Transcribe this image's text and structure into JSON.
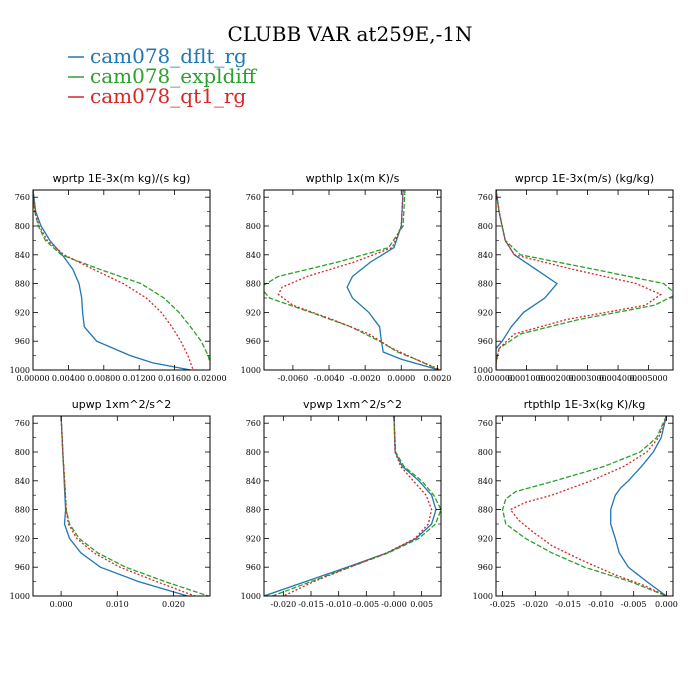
{
  "figure": {
    "title": "CLUBB VAR at259E,-1N",
    "legend": [
      {
        "name": "cam078_dflt_rg",
        "color": "#1f77b4"
      },
      {
        "name": "cam078_expldiff",
        "color": "#2ca02c"
      },
      {
        "name": "cam078_qt1_rg",
        "color": "#d62728"
      }
    ]
  },
  "chart_data": [
    {
      "type": "line",
      "title": "wprtp  1E-3x(m kg)/(s kg)",
      "xlabel": "",
      "ylabel": "",
      "xlim": [
        0,
        0.02
      ],
      "ylim": [
        1000,
        750
      ],
      "x_ticks": [
        "0.00000",
        "0.00400",
        "0.00800",
        "0.01200",
        "0.01600",
        "0.02000"
      ],
      "x_tick_values": [
        0,
        0.004,
        0.008,
        0.012,
        0.016,
        0.02
      ],
      "y_ticks": [
        760,
        800,
        840,
        880,
        920,
        960,
        1000
      ],
      "series": [
        {
          "name": "cam078_dflt_rg",
          "y": [
            750,
            780,
            800,
            820,
            840,
            860,
            880,
            900,
            920,
            940,
            960,
            980,
            990,
            1000
          ],
          "x": [
            0,
            0.0003,
            0.0009,
            0.0019,
            0.0033,
            0.0045,
            0.0052,
            0.0055,
            0.0056,
            0.0058,
            0.0072,
            0.011,
            0.0135,
            0.0178
          ]
        },
        {
          "name": "cam078_expldiff",
          "y": [
            750,
            780,
            800,
            820,
            840,
            860,
            880,
            900,
            920,
            940,
            960,
            980,
            1000
          ],
          "x": [
            0,
            0.0002,
            0.0006,
            0.0014,
            0.0032,
            0.0075,
            0.0122,
            0.0148,
            0.0165,
            0.0178,
            0.019,
            0.0198,
            0.0202
          ]
        },
        {
          "name": "cam078_qt1_rg",
          "y": [
            750,
            780,
            800,
            820,
            840,
            860,
            880,
            900,
            920,
            940,
            960,
            980,
            1000
          ],
          "x": [
            0,
            0.0002,
            0.0007,
            0.0016,
            0.0035,
            0.0068,
            0.0102,
            0.0128,
            0.0145,
            0.0157,
            0.0167,
            0.0175,
            0.0181
          ]
        }
      ]
    },
    {
      "type": "line",
      "title": "wpthlp  1x(m K)/s",
      "xlabel": "",
      "ylabel": "",
      "xlim": [
        -0.0076,
        0.0022
      ],
      "ylim": [
        1000,
        750
      ],
      "x_ticks": [
        "-0.0060",
        "-0.0040",
        "-0.0020",
        "0.0000",
        "0.0020"
      ],
      "x_tick_values": [
        -0.006,
        -0.004,
        -0.002,
        0,
        0.002
      ],
      "y_ticks": [
        760,
        800,
        840,
        880,
        920,
        960,
        1000
      ],
      "series": [
        {
          "name": "cam078_dflt_rg",
          "y": [
            750,
            800,
            830,
            850,
            870,
            885,
            900,
            920,
            940,
            960,
            975,
            985,
            1000
          ],
          "x": [
            0.0001,
            0.0,
            -0.0004,
            -0.0017,
            -0.0027,
            -0.003,
            -0.0027,
            -0.0018,
            -0.0012,
            -0.0011,
            -0.001,
            0.0,
            0.0021
          ]
        },
        {
          "name": "cam078_expldiff",
          "y": [
            750,
            800,
            830,
            850,
            870,
            885,
            900,
            920,
            940,
            960,
            975,
            985,
            1000
          ],
          "x": [
            0.0002,
            0.0001,
            -0.0007,
            -0.0035,
            -0.0068,
            -0.0078,
            -0.0073,
            -0.005,
            -0.0028,
            -0.0012,
            -0.0002,
            0.0008,
            0.0021
          ]
        },
        {
          "name": "cam078_qt1_rg",
          "y": [
            750,
            800,
            830,
            850,
            870,
            885,
            895,
            910,
            930,
            950,
            970,
            985,
            1000
          ],
          "x": [
            0.0001,
            0.0,
            -0.0005,
            -0.0026,
            -0.0052,
            -0.0066,
            -0.0068,
            -0.006,
            -0.0038,
            -0.0018,
            -0.0005,
            0.0008,
            0.0022
          ]
        }
      ]
    },
    {
      "type": "line",
      "title": "wprcp  1E-3x(m/s) (kg/kg)",
      "xlabel": "",
      "ylabel": "",
      "xlim": [
        0,
        0.0058
      ],
      "ylim": [
        1000,
        750
      ],
      "x_ticks": [
        "0.000000",
        "0.001000",
        "0.002000",
        "0.003000",
        "0.004000",
        "0.005000"
      ],
      "x_tick_values": [
        0,
        0.001,
        0.002,
        0.003,
        0.004,
        0.005
      ],
      "y_ticks": [
        760,
        800,
        840,
        880,
        920,
        960,
        1000
      ],
      "series": [
        {
          "name": "cam078_dflt_rg",
          "y": [
            750,
            780,
            800,
            820,
            840,
            860,
            880,
            900,
            920,
            940,
            960,
            970,
            980,
            1000
          ],
          "x": [
            0,
            0.0001,
            0.0002,
            0.0003,
            0.0006,
            0.0013,
            0.002,
            0.0016,
            0.0009,
            0.0005,
            0.0002,
            0.0,
            0.0,
            0.0
          ]
        },
        {
          "name": "cam078_expldiff",
          "y": [
            750,
            780,
            800,
            820,
            840,
            860,
            880,
            895,
            910,
            930,
            950,
            970,
            990,
            1000
          ],
          "x": [
            0,
            0.0001,
            0.0002,
            0.0003,
            0.0008,
            0.0032,
            0.0055,
            0.0059,
            0.0052,
            0.0027,
            0.0008,
            0.0001,
            0.0,
            0.0
          ]
        },
        {
          "name": "cam078_qt1_rg",
          "y": [
            750,
            780,
            800,
            820,
            840,
            860,
            880,
            895,
            910,
            930,
            950,
            970,
            990,
            1000
          ],
          "x": [
            0,
            0.0001,
            0.0002,
            0.0003,
            0.0006,
            0.0025,
            0.0046,
            0.0054,
            0.0049,
            0.0023,
            0.0006,
            0.0001,
            0.0,
            0.0
          ]
        }
      ]
    },
    {
      "type": "line",
      "title": "upwp   1xm^2/s^2",
      "xlabel": "",
      "ylabel": "",
      "xlim": [
        -0.005,
        0.0265
      ],
      "ylim": [
        1000,
        750
      ],
      "x_ticks": [
        "0.000",
        "0.010",
        "0.020"
      ],
      "x_tick_values": [
        0,
        0.01,
        0.02
      ],
      "y_ticks": [
        760,
        800,
        840,
        880,
        920,
        960,
        1000
      ],
      "series": [
        {
          "name": "cam078_dflt_rg",
          "y": [
            750,
            800,
            850,
            880,
            900,
            920,
            940,
            960,
            980,
            1000
          ],
          "x": [
            0.0,
            0.0003,
            0.0006,
            0.0008,
            0.0006,
            0.0015,
            0.0035,
            0.007,
            0.0138,
            0.0225
          ]
        },
        {
          "name": "cam078_expldiff",
          "y": [
            750,
            800,
            850,
            880,
            900,
            920,
            940,
            960,
            980,
            1000
          ],
          "x": [
            0.0,
            0.0003,
            0.0007,
            0.0009,
            0.0015,
            0.0032,
            0.0065,
            0.0115,
            0.0185,
            0.0262
          ]
        },
        {
          "name": "cam078_qt1_rg",
          "y": [
            750,
            800,
            850,
            880,
            900,
            920,
            940,
            960,
            980,
            1000
          ],
          "x": [
            0.0,
            0.0003,
            0.0007,
            0.0009,
            0.0013,
            0.0028,
            0.0058,
            0.0105,
            0.017,
            0.0238
          ]
        }
      ]
    },
    {
      "type": "line",
      "title": "vpwp   1xm^2/s^2",
      "xlabel": "",
      "ylabel": "",
      "xlim": [
        -0.0235,
        0.0085
      ],
      "ylim": [
        1000,
        750
      ],
      "x_ticks": [
        "-0.020",
        "-0.015",
        "-0.010",
        "-0.005",
        "-0.000",
        "0.005"
      ],
      "x_tick_values": [
        -0.02,
        -0.015,
        -0.01,
        -0.005,
        0,
        0.005
      ],
      "y_ticks": [
        760,
        800,
        840,
        880,
        920,
        960,
        1000
      ],
      "series": [
        {
          "name": "cam078_dflt_rg",
          "y": [
            750,
            800,
            820,
            840,
            860,
            880,
            900,
            920,
            940,
            960,
            980,
            1000
          ],
          "x": [
            0.0,
            0.0002,
            0.0015,
            0.0045,
            0.0068,
            0.0076,
            0.0068,
            0.004,
            -0.0012,
            -0.0085,
            -0.016,
            -0.0235
          ]
        },
        {
          "name": "cam078_expldiff",
          "y": [
            750,
            800,
            820,
            840,
            860,
            880,
            900,
            920,
            940,
            960,
            980,
            1000
          ],
          "x": [
            0.0,
            0.0003,
            0.0018,
            0.005,
            0.0072,
            0.0085,
            0.0075,
            0.0045,
            -0.001,
            -0.008,
            -0.015,
            -0.022
          ]
        },
        {
          "name": "cam078_qt1_rg",
          "y": [
            750,
            800,
            820,
            840,
            860,
            880,
            900,
            920,
            940,
            960,
            980,
            1000
          ],
          "x": [
            0.0,
            0.0002,
            0.0012,
            0.0035,
            0.0058,
            0.0068,
            0.0062,
            0.0038,
            -0.0013,
            -0.008,
            -0.0145,
            -0.02
          ]
        }
      ]
    },
    {
      "type": "line",
      "title": "rtpthlp  1E-3x(kg K)/kg",
      "xlabel": "",
      "ylabel": "",
      "xlim": [
        -0.026,
        0.001
      ],
      "ylim": [
        1000,
        750
      ],
      "x_ticks": [
        "-0.025",
        "-0.020",
        "-0.015",
        "-0.010",
        "-0.005",
        "0.000"
      ],
      "x_tick_values": [
        -0.025,
        -0.02,
        -0.015,
        -0.01,
        -0.005,
        0
      ],
      "y_ticks": [
        760,
        800,
        840,
        880,
        920,
        960,
        1000
      ],
      "series": [
        {
          "name": "cam078_dflt_rg",
          "y": [
            750,
            780,
            800,
            820,
            840,
            850,
            860,
            880,
            900,
            920,
            940,
            960,
            980,
            1000
          ],
          "x": [
            0.0,
            -0.0008,
            -0.002,
            -0.0038,
            -0.0058,
            -0.007,
            -0.0078,
            -0.0085,
            -0.0085,
            -0.0078,
            -0.0072,
            -0.0058,
            -0.003,
            0.0
          ]
        },
        {
          "name": "cam078_expldiff",
          "y": [
            750,
            780,
            800,
            820,
            840,
            855,
            865,
            880,
            900,
            920,
            940,
            960,
            980,
            1000
          ],
          "x": [
            0.0,
            -0.0015,
            -0.004,
            -0.0095,
            -0.017,
            -0.023,
            -0.0245,
            -0.025,
            -0.0245,
            -0.0215,
            -0.0175,
            -0.0125,
            -0.0055,
            0.0
          ]
        },
        {
          "name": "cam078_qt1_rg",
          "y": [
            750,
            780,
            800,
            820,
            840,
            860,
            870,
            880,
            895,
            910,
            930,
            950,
            970,
            985,
            1000
          ],
          "x": [
            0.0,
            -0.0012,
            -0.003,
            -0.0065,
            -0.0115,
            -0.0175,
            -0.0215,
            -0.0238,
            -0.0225,
            -0.0205,
            -0.0175,
            -0.013,
            -0.008,
            -0.0035,
            0.0
          ]
        }
      ]
    }
  ]
}
